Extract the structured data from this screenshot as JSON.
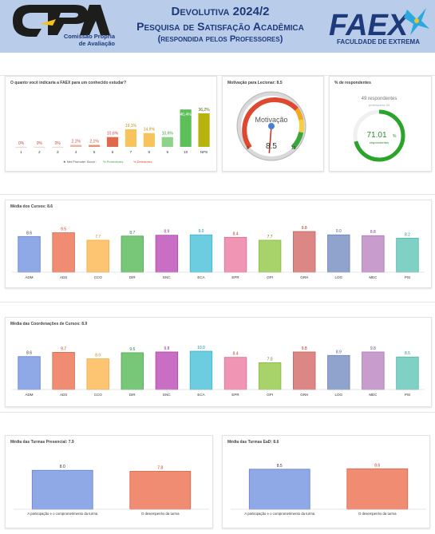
{
  "header": {
    "cpa_logo_text": "CPA",
    "cpa_subtitle_1": "Comissão Própria",
    "cpa_subtitle_2": "de Avaliação",
    "title_line1": "Devolutiva 2024/2",
    "title_line2": "Pesquisa de Satisfação Acadêmica",
    "title_line3": "(respondida pelos Professores)",
    "faex_logo_text": "FAEX",
    "faex_subtitle": "FACULDADE DE EXTREMA",
    "brand_color": "#1f3a7a"
  },
  "chart_data": [
    {
      "type": "bar",
      "title": "O quanto você indicaria a FAEX para um conhecido estudar?",
      "categories": [
        "1",
        "2",
        "3",
        "4",
        "5",
        "6",
        "7",
        "8",
        "9",
        "10",
        "NPS"
      ],
      "values": [
        0,
        0,
        0,
        2.1,
        2.1,
        10.6,
        19.1,
        14.9,
        10.6,
        40.4,
        36.2
      ],
      "labels": [
        "0%",
        "0%",
        "0%",
        "2,1%",
        "2,1%",
        "10,6%",
        "19,1%",
        "14,9%",
        "10,6%",
        "40,4%",
        "36,2%"
      ],
      "colors": [
        "#f1c9c2",
        "#f1c9c2",
        "#f1c9c2",
        "#f0b2a0",
        "#ea8e74",
        "#e0694c",
        "#f7c35c",
        "#f7c35c",
        "#8fd28a",
        "#5cbf5a",
        "#b8b20c"
      ],
      "label_colors": [
        "#c9473a",
        "#c9473a",
        "#c9473a",
        "#c9473a",
        "#c9473a",
        "#c9473a",
        "#c08a10",
        "#c08a10",
        "#3a9a3a",
        "#ffffff",
        "#5a5a10"
      ],
      "legend": "★ Net Promoter Score  ■ % Promotores  ■ % Detratores",
      "legend_promoters": "% Promotores",
      "legend_detractors": "% Detratores",
      "legend_nps": "★ Net Promoter Score :",
      "ylim": [
        0,
        50
      ]
    },
    {
      "type": "gauge",
      "title": "Motivação para Lecionar: 8.5",
      "label": "Motivação",
      "value": 8.5,
      "value_label": "8.5",
      "min_label": "0",
      "max_label": "10",
      "range": [
        0,
        10
      ]
    },
    {
      "type": "donut",
      "title": "% de respondentes",
      "respondents_label": "49 respondentes",
      "professors_label": "professores 69",
      "value": 71.01,
      "value_label": "71.01",
      "value_unit": "%",
      "sub_label": "respondentes"
    },
    {
      "type": "bar",
      "title": "Média dos Cursos: 8.6",
      "categories": [
        "ADM",
        "ADS",
        "CCO",
        "DIR",
        "ENC",
        "ECA",
        "EPR",
        "GPI",
        "GRH",
        "LOG",
        "MEC",
        "PSI"
      ],
      "values": [
        8.6,
        9.5,
        7.7,
        8.7,
        8.9,
        9.0,
        8.4,
        7.7,
        9.8,
        9.0,
        8.8,
        8.2
      ],
      "labels": [
        "8.6",
        "9.5",
        "7.7",
        "8.7",
        "8.9",
        "9.0",
        "8.4",
        "7.7",
        "9.8",
        "9.0",
        "8.8",
        "8.2"
      ],
      "ylim": [
        0,
        10
      ]
    },
    {
      "type": "bar",
      "title": "Média das Coordenações de Cursos: 8.9",
      "categories": [
        "ADM",
        "ADS",
        "CCO",
        "DIR",
        "ENC",
        "ECA",
        "EPR",
        "GPI",
        "GRH",
        "LOG",
        "MEC",
        "PSI"
      ],
      "values": [
        8.6,
        9.7,
        8.0,
        9.6,
        9.8,
        10.0,
        8.4,
        7.0,
        9.8,
        8.9,
        9.8,
        8.5
      ],
      "labels": [
        "8.6",
        "9.7",
        "8.0",
        "9.6",
        "9.8",
        "10.0",
        "8.4",
        "7.0",
        "9.8",
        "8.9",
        "9.8",
        "8.5"
      ],
      "ylim": [
        0,
        10
      ]
    },
    {
      "type": "bar",
      "title": "Média das Turmas Presencial: 7.9",
      "categories": [
        "A participação e o comprometimento da turma",
        "O desempenho da turma"
      ],
      "values": [
        8.0,
        7.8
      ],
      "labels": [
        "8.0",
        "7.8"
      ],
      "ylim": [
        0,
        10
      ]
    },
    {
      "type": "bar",
      "title": "Média das Turmas EaD: 8.6",
      "categories": [
        "A participação e o comprometimento da turma",
        "O desempenho da turma"
      ],
      "values": [
        8.5,
        8.6
      ],
      "labels": [
        "8.5",
        "8.6"
      ],
      "ylim": [
        0,
        10
      ]
    }
  ],
  "course_palette": {
    "fills": [
      "#8fa8e6",
      "#ef8c72",
      "#fdc572",
      "#78c779",
      "#c86fc5",
      "#6ccde0",
      "#f195b5",
      "#a8d36b",
      "#dd8686",
      "#8fa3cc",
      "#c89ccc",
      "#7fd1c5"
    ],
    "strokes": [
      "#5f7fd0",
      "#d8664a",
      "#f5a83a",
      "#4aa84c",
      "#a746a3",
      "#3fb2c8",
      "#e0688f",
      "#86b944",
      "#c45f5f",
      "#6a82b3",
      "#a875ad",
      "#52b5a6"
    ],
    "label_colors": [
      "#333333",
      "#c0392b",
      "#c08a10",
      "#2e7d32",
      "#8e2a8a",
      "#0f8aa0",
      "#c0392b",
      "#5a7a1a",
      "#a02d2d",
      "#3d5a99",
      "#7a3d8a",
      "#2a8a80"
    ]
  },
  "turmas_palette": {
    "fills": [
      "#8fa8e6",
      "#ef8c72"
    ],
    "strokes": [
      "#5f7fd0",
      "#d8664a"
    ],
    "label_colors": [
      "#333333",
      "#c0392b"
    ]
  }
}
